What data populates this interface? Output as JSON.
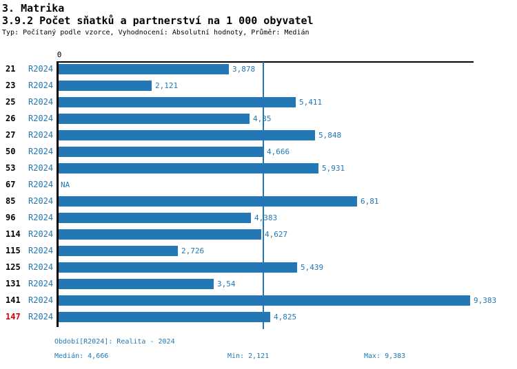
{
  "header": {
    "title": "3. Matrika",
    "subtitle": "3.9.2 Počet sňatků a partnerství na 1 000 obyvatel",
    "meta": "Typ: Počítaný podle vzorce, Vyhodnocení: Absolutní hodnoty, Průměr: Medián"
  },
  "chart": {
    "zero_tick": "0"
  },
  "chart_data": {
    "type": "bar",
    "orientation": "horizontal",
    "title": "3.9.2 Počet sňatků a partnerství na 1 000 obyvatel",
    "categories": [
      "21",
      "23",
      "25",
      "26",
      "27",
      "50",
      "53",
      "67",
      "85",
      "96",
      "114",
      "115",
      "125",
      "131",
      "141",
      "147"
    ],
    "series": [
      {
        "name": "R2024",
        "values": [
          3.878,
          2.121,
          5.411,
          4.35,
          5.848,
          4.666,
          5.931,
          null,
          6.81,
          4.383,
          4.627,
          2.726,
          5.439,
          3.54,
          9.383,
          4.825
        ],
        "value_labels": [
          "3,878",
          "2,121",
          "5,411",
          "4,35",
          "5,848",
          "4,666",
          "5,931",
          "NA",
          "6,81",
          "4,383",
          "4,627",
          "2,726",
          "5,439",
          "3,54",
          "9,383",
          "4,825"
        ]
      }
    ],
    "xlabel": "",
    "ylabel": "",
    "x_ticks": [
      "0"
    ],
    "xlim": [
      0,
      9.49
    ],
    "median_line_value": 4.666,
    "highlighted_categories": [
      "147"
    ],
    "grid": false,
    "legend_position": "none"
  },
  "colors": {
    "bar": "#2277B4",
    "accent_text": "#1F77B4",
    "highlight": "#DD0000",
    "axis": "#000000"
  },
  "footer": {
    "period": "Období[R2024]: Realita - 2024",
    "median": "Medián: 4,666",
    "min": "Min: 2,121",
    "max": "Max: 9,383"
  }
}
